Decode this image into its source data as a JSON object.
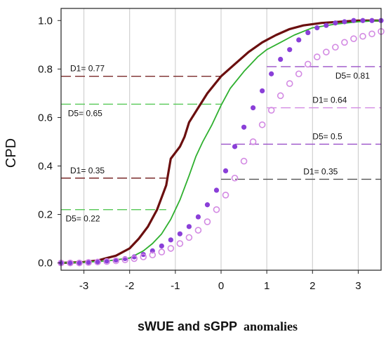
{
  "chart_data": {
    "type": "line",
    "title": "",
    "xlabel": "sWUE and sGPP",
    "xlabel_suffix": "anomalies",
    "ylabel": "CPD",
    "xlim": [
      -3.5,
      3.5
    ],
    "ylim": [
      -0.03,
      1.05
    ],
    "x_ticks": [
      -3,
      -2,
      -1,
      0,
      1,
      2,
      3
    ],
    "y_ticks": [
      "0.0",
      "0.2",
      "0.4",
      "0.6",
      "0.8",
      "1.0"
    ],
    "y_tick_values": [
      0,
      0.2,
      0.4,
      0.6,
      0.8,
      1.0
    ],
    "grid": "vertical",
    "colors": {
      "series_dark": "#6b0f0f",
      "series_green": "#2fb02f",
      "series_purple": "#8a3fd8",
      "series_pink": "#d38ae3",
      "ref_d1_left": "#7a2a2a",
      "ref_d5_left": "#55c855",
      "ref_d5_right": "#9a50c8",
      "ref_d1_right": "#555555",
      "grid": "#c8c8c8"
    },
    "series": [
      {
        "style": "line-thick",
        "color": "#6b0f0f",
        "points": [
          [
            -3.5,
            0.0
          ],
          [
            -3.0,
            0.004
          ],
          [
            -2.7,
            0.01
          ],
          [
            -2.5,
            0.02
          ],
          [
            -2.3,
            0.03
          ],
          [
            -2.0,
            0.06
          ],
          [
            -1.8,
            0.1
          ],
          [
            -1.6,
            0.15
          ],
          [
            -1.4,
            0.22
          ],
          [
            -1.2,
            0.32
          ],
          [
            -1.1,
            0.43
          ],
          [
            -0.9,
            0.48
          ],
          [
            -0.8,
            0.52
          ],
          [
            -0.7,
            0.58
          ],
          [
            -0.5,
            0.64
          ],
          [
            -0.3,
            0.7
          ],
          [
            0.0,
            0.77
          ],
          [
            0.3,
            0.82
          ],
          [
            0.6,
            0.87
          ],
          [
            0.9,
            0.91
          ],
          [
            1.2,
            0.94
          ],
          [
            1.5,
            0.965
          ],
          [
            1.8,
            0.98
          ],
          [
            2.2,
            0.99
          ],
          [
            2.6,
            0.995
          ],
          [
            3.0,
            1.0
          ],
          [
            3.5,
            1.0
          ]
        ]
      },
      {
        "style": "line",
        "color": "#2fb02f",
        "points": [
          [
            -3.5,
            0.0
          ],
          [
            -3.0,
            0.003
          ],
          [
            -2.5,
            0.008
          ],
          [
            -2.0,
            0.02
          ],
          [
            -1.7,
            0.05
          ],
          [
            -1.5,
            0.08
          ],
          [
            -1.3,
            0.12
          ],
          [
            -1.1,
            0.18
          ],
          [
            -0.9,
            0.26
          ],
          [
            -0.7,
            0.36
          ],
          [
            -0.55,
            0.44
          ],
          [
            -0.4,
            0.5
          ],
          [
            -0.2,
            0.57
          ],
          [
            0.0,
            0.65
          ],
          [
            0.2,
            0.72
          ],
          [
            0.5,
            0.79
          ],
          [
            0.8,
            0.85
          ],
          [
            1.0,
            0.88
          ],
          [
            1.3,
            0.91
          ],
          [
            1.6,
            0.94
          ],
          [
            2.0,
            0.97
          ],
          [
            2.5,
            0.985
          ],
          [
            3.0,
            0.995
          ],
          [
            3.5,
            1.0
          ]
        ]
      },
      {
        "style": "dots-filled",
        "color": "#8a3fd8",
        "points": [
          [
            -3.5,
            0.0
          ],
          [
            -3.3,
            0.0
          ],
          [
            -3.1,
            0.0
          ],
          [
            -2.9,
            0.003
          ],
          [
            -2.7,
            0.005
          ],
          [
            -2.5,
            0.008
          ],
          [
            -2.3,
            0.012
          ],
          [
            -2.1,
            0.018
          ],
          [
            -1.9,
            0.025
          ],
          [
            -1.7,
            0.035
          ],
          [
            -1.5,
            0.05
          ],
          [
            -1.3,
            0.07
          ],
          [
            -1.1,
            0.095
          ],
          [
            -0.9,
            0.12
          ],
          [
            -0.7,
            0.15
          ],
          [
            -0.5,
            0.19
          ],
          [
            -0.3,
            0.24
          ],
          [
            -0.1,
            0.3
          ],
          [
            0.1,
            0.38
          ],
          [
            0.3,
            0.48
          ],
          [
            0.5,
            0.56
          ],
          [
            0.7,
            0.64
          ],
          [
            0.9,
            0.71
          ],
          [
            1.1,
            0.78
          ],
          [
            1.3,
            0.84
          ],
          [
            1.5,
            0.88
          ],
          [
            1.7,
            0.92
          ],
          [
            1.9,
            0.95
          ],
          [
            2.1,
            0.97
          ],
          [
            2.3,
            0.98
          ],
          [
            2.5,
            0.99
          ],
          [
            2.7,
            0.995
          ],
          [
            2.9,
            1.0
          ],
          [
            3.1,
            1.0
          ],
          [
            3.3,
            1.0
          ],
          [
            3.5,
            1.0
          ]
        ]
      },
      {
        "style": "dots-open",
        "color": "#d38ae3",
        "points": [
          [
            -3.5,
            0.0
          ],
          [
            -3.3,
            0.0
          ],
          [
            -3.1,
            0.0
          ],
          [
            -2.9,
            0.002
          ],
          [
            -2.7,
            0.004
          ],
          [
            -2.5,
            0.006
          ],
          [
            -2.3,
            0.009
          ],
          [
            -2.1,
            0.013
          ],
          [
            -1.9,
            0.018
          ],
          [
            -1.7,
            0.025
          ],
          [
            -1.5,
            0.033
          ],
          [
            -1.3,
            0.045
          ],
          [
            -1.1,
            0.06
          ],
          [
            -0.9,
            0.08
          ],
          [
            -0.7,
            0.105
          ],
          [
            -0.5,
            0.135
          ],
          [
            -0.3,
            0.17
          ],
          [
            -0.1,
            0.22
          ],
          [
            0.1,
            0.28
          ],
          [
            0.3,
            0.35
          ],
          [
            0.5,
            0.42
          ],
          [
            0.7,
            0.5
          ],
          [
            0.9,
            0.57
          ],
          [
            1.1,
            0.63
          ],
          [
            1.3,
            0.69
          ],
          [
            1.5,
            0.74
          ],
          [
            1.7,
            0.78
          ],
          [
            1.9,
            0.82
          ],
          [
            2.1,
            0.85
          ],
          [
            2.3,
            0.87
          ],
          [
            2.5,
            0.89
          ],
          [
            2.7,
            0.91
          ],
          [
            2.9,
            0.925
          ],
          [
            3.1,
            0.935
          ],
          [
            3.3,
            0.945
          ],
          [
            3.5,
            0.955
          ]
        ]
      }
    ],
    "reference_lines": [
      {
        "label": "D1= 0.77",
        "y": 0.77,
        "x_from": -3.5,
        "x_to": 0.0,
        "color": "#7a2a2a",
        "label_x": -3.3,
        "label_side": "above"
      },
      {
        "label": "D5= 0.65",
        "y": 0.655,
        "x_from": -3.5,
        "x_to": 0.0,
        "color": "#55c855",
        "label_x": -3.35,
        "label_side": "below"
      },
      {
        "label": "D1= 0.35",
        "y": 0.35,
        "x_from": -3.5,
        "x_to": -1.2,
        "color": "#7a2a2a",
        "label_x": -3.3,
        "label_side": "above"
      },
      {
        "label": "D5= 0.22",
        "y": 0.22,
        "x_from": -3.5,
        "x_to": -1.2,
        "color": "#55c855",
        "label_x": -3.4,
        "label_side": "below"
      },
      {
        "label": "D5= 0.81",
        "y": 0.81,
        "x_from": 1.0,
        "x_to": 3.5,
        "color": "#9a50c8",
        "label_x": 2.5,
        "label_side": "below"
      },
      {
        "label": "D1= 0.64",
        "y": 0.64,
        "x_from": 1.0,
        "x_to": 3.5,
        "color": "#d38ae3",
        "label_x": 2.0,
        "label_side": "above"
      },
      {
        "label": "D5= 0.5",
        "y": 0.49,
        "x_from": 0.0,
        "x_to": 3.5,
        "color": "#9a50c8",
        "label_x": 2.0,
        "label_side": "above"
      },
      {
        "label": "D1= 0.35",
        "y": 0.345,
        "x_from": 0.0,
        "x_to": 3.5,
        "color": "#555555",
        "label_x": 1.8,
        "label_side": "above"
      }
    ]
  }
}
